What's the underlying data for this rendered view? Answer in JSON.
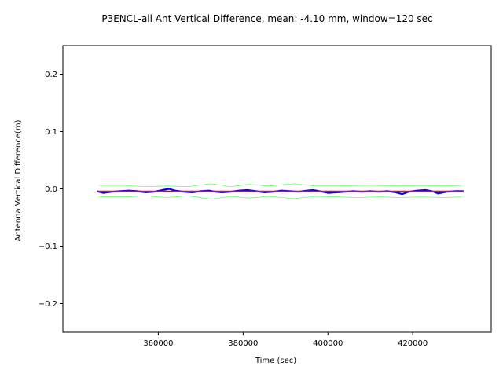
{
  "chart_data": {
    "type": "line",
    "title": "P3ENCL-all Ant Vertical Difference, mean: -4.10 mm, window=120 sec",
    "xlabel": "Time (sec)",
    "ylabel": "Antenna Vertical Difference(m)",
    "xlim": [
      337500,
      438500
    ],
    "ylim": [
      -0.25,
      0.25
    ],
    "x_ticks": [
      360000,
      380000,
      400000,
      420000
    ],
    "x_tick_labels": [
      "360000",
      "380000",
      "400000",
      "420000"
    ],
    "y_ticks": [
      -0.2,
      -0.1,
      0.0,
      0.1,
      0.2
    ],
    "y_tick_labels": [
      "−0.2",
      "−0.1",
      "0.0",
      "0.1",
      "0.2"
    ],
    "grid": false,
    "colors": {
      "raw": "#0000ff",
      "mean": "#ff0000",
      "envelope": "#66ff66"
    },
    "series": [
      {
        "role": "raw",
        "x": [
          345500,
          347000,
          349000,
          351000,
          353000,
          355000,
          357000,
          359000,
          361000,
          362500,
          364000,
          366000,
          368000,
          370000,
          372000,
          373500,
          375000,
          377000,
          379000,
          381000,
          383000,
          385000,
          387000,
          389000,
          391000,
          393000,
          395000,
          396500,
          398000,
          400000,
          402000,
          404000,
          406000,
          408000,
          410000,
          412000,
          414000,
          416000,
          417500,
          419000,
          421000,
          423000,
          424500,
          426000,
          428000,
          430000,
          432000
        ],
        "y": [
          -0.004,
          -0.007,
          -0.005,
          -0.004,
          -0.003,
          -0.004,
          -0.006,
          -0.005,
          -0.002,
          0.0,
          -0.003,
          -0.005,
          -0.006,
          -0.004,
          -0.003,
          -0.005,
          -0.006,
          -0.005,
          -0.003,
          -0.002,
          -0.004,
          -0.006,
          -0.005,
          -0.003,
          -0.004,
          -0.005,
          -0.003,
          -0.002,
          -0.004,
          -0.007,
          -0.006,
          -0.005,
          -0.004,
          -0.005,
          -0.004,
          -0.005,
          -0.004,
          -0.006,
          -0.009,
          -0.005,
          -0.003,
          -0.002,
          -0.004,
          -0.008,
          -0.005,
          -0.004,
          -0.004
        ]
      },
      {
        "role": "mean",
        "x": [
          345500,
          432000
        ],
        "y": [
          -0.0041,
          -0.0041
        ]
      },
      {
        "role": "envelope-upper",
        "x": [
          346000,
          352000,
          357000,
          362000,
          367000,
          372500,
          377000,
          381500,
          386000,
          392000,
          397000,
          402000,
          407000,
          412000,
          417000,
          422000,
          427000,
          431500
        ],
        "y": [
          0.006,
          0.006,
          0.004,
          0.005,
          0.004,
          0.009,
          0.004,
          0.008,
          0.005,
          0.009,
          0.005,
          0.005,
          0.006,
          0.006,
          0.005,
          0.006,
          0.005,
          0.006
        ]
      },
      {
        "role": "envelope-lower",
        "x": [
          346000,
          352000,
          357000,
          362000,
          367000,
          372500,
          377000,
          381500,
          386000,
          392000,
          397000,
          402000,
          407000,
          412000,
          417000,
          422000,
          427000,
          431500
        ],
        "y": [
          -0.014,
          -0.014,
          -0.012,
          -0.015,
          -0.012,
          -0.018,
          -0.013,
          -0.016,
          -0.013,
          -0.017,
          -0.013,
          -0.014,
          -0.015,
          -0.014,
          -0.015,
          -0.014,
          -0.015,
          -0.014
        ]
      }
    ]
  }
}
